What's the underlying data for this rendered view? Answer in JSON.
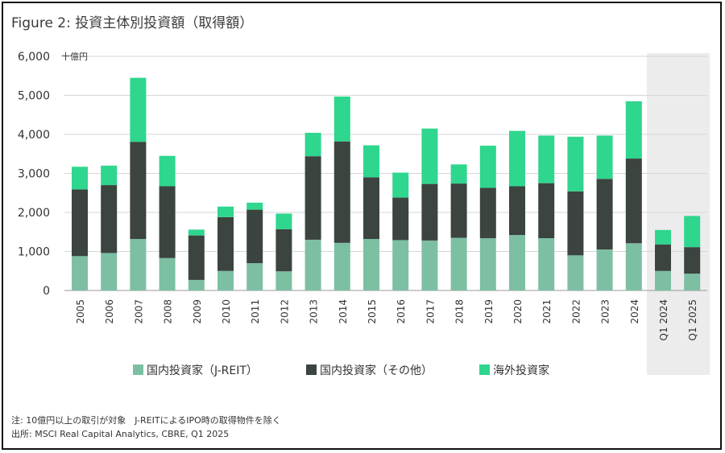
{
  "title": "Figure 2: 投資主体別投資額（取得額）",
  "footnote": {
    "line1": "注: 10億円以上の取引が対象　J-REITによるIPO時の取得物件を除く",
    "line2": "出所: MSCI Real Capital Analytics, CBRE, Q1 2025"
  },
  "colors": {
    "jreit": "#7dbfa3",
    "other_domestic": "#3c4440",
    "foreign": "#2fd68e",
    "highlight_bg": "#ececec",
    "grid": "#d6d6d6"
  },
  "chart_data": {
    "type": "bar",
    "stacked": true,
    "unit_label": "十億円",
    "ylim": [
      0,
      6000
    ],
    "yticks": [
      "0",
      "1,000",
      "2,000",
      "3,000",
      "4,000",
      "5,000",
      "6,000"
    ],
    "grid": true,
    "legend_position": "bottom",
    "categories": [
      "2005",
      "2006",
      "2007",
      "2008",
      "2009",
      "2010",
      "2011",
      "2012",
      "2013",
      "2014",
      "2015",
      "2016",
      "2017",
      "2018",
      "2019",
      "2020",
      "2021",
      "2022",
      "2023",
      "2024",
      "Q1 2024",
      "Q1 2025"
    ],
    "highlighted_categories": [
      "Q1 2024",
      "Q1 2025"
    ],
    "series": [
      {
        "name": "国内投資家（J-REIT）",
        "color_key": "jreit",
        "values": [
          880,
          960,
          1320,
          830,
          270,
          500,
          700,
          490,
          1300,
          1220,
          1320,
          1290,
          1280,
          1350,
          1340,
          1420,
          1340,
          900,
          1050,
          1210,
          500,
          430
        ]
      },
      {
        "name": "国内投資家（その他）",
        "color_key": "other_domestic",
        "values": [
          1710,
          1740,
          2490,
          1840,
          1140,
          1380,
          1370,
          1080,
          2140,
          2600,
          1580,
          1090,
          1450,
          1390,
          1290,
          1250,
          1410,
          1640,
          1810,
          2170,
          680,
          680
        ]
      },
      {
        "name": "海外投資家",
        "color_key": "foreign",
        "values": [
          580,
          500,
          1640,
          780,
          150,
          270,
          180,
          400,
          600,
          1150,
          820,
          640,
          1420,
          490,
          1080,
          1420,
          1220,
          1400,
          1110,
          1470,
          370,
          800
        ]
      }
    ]
  }
}
